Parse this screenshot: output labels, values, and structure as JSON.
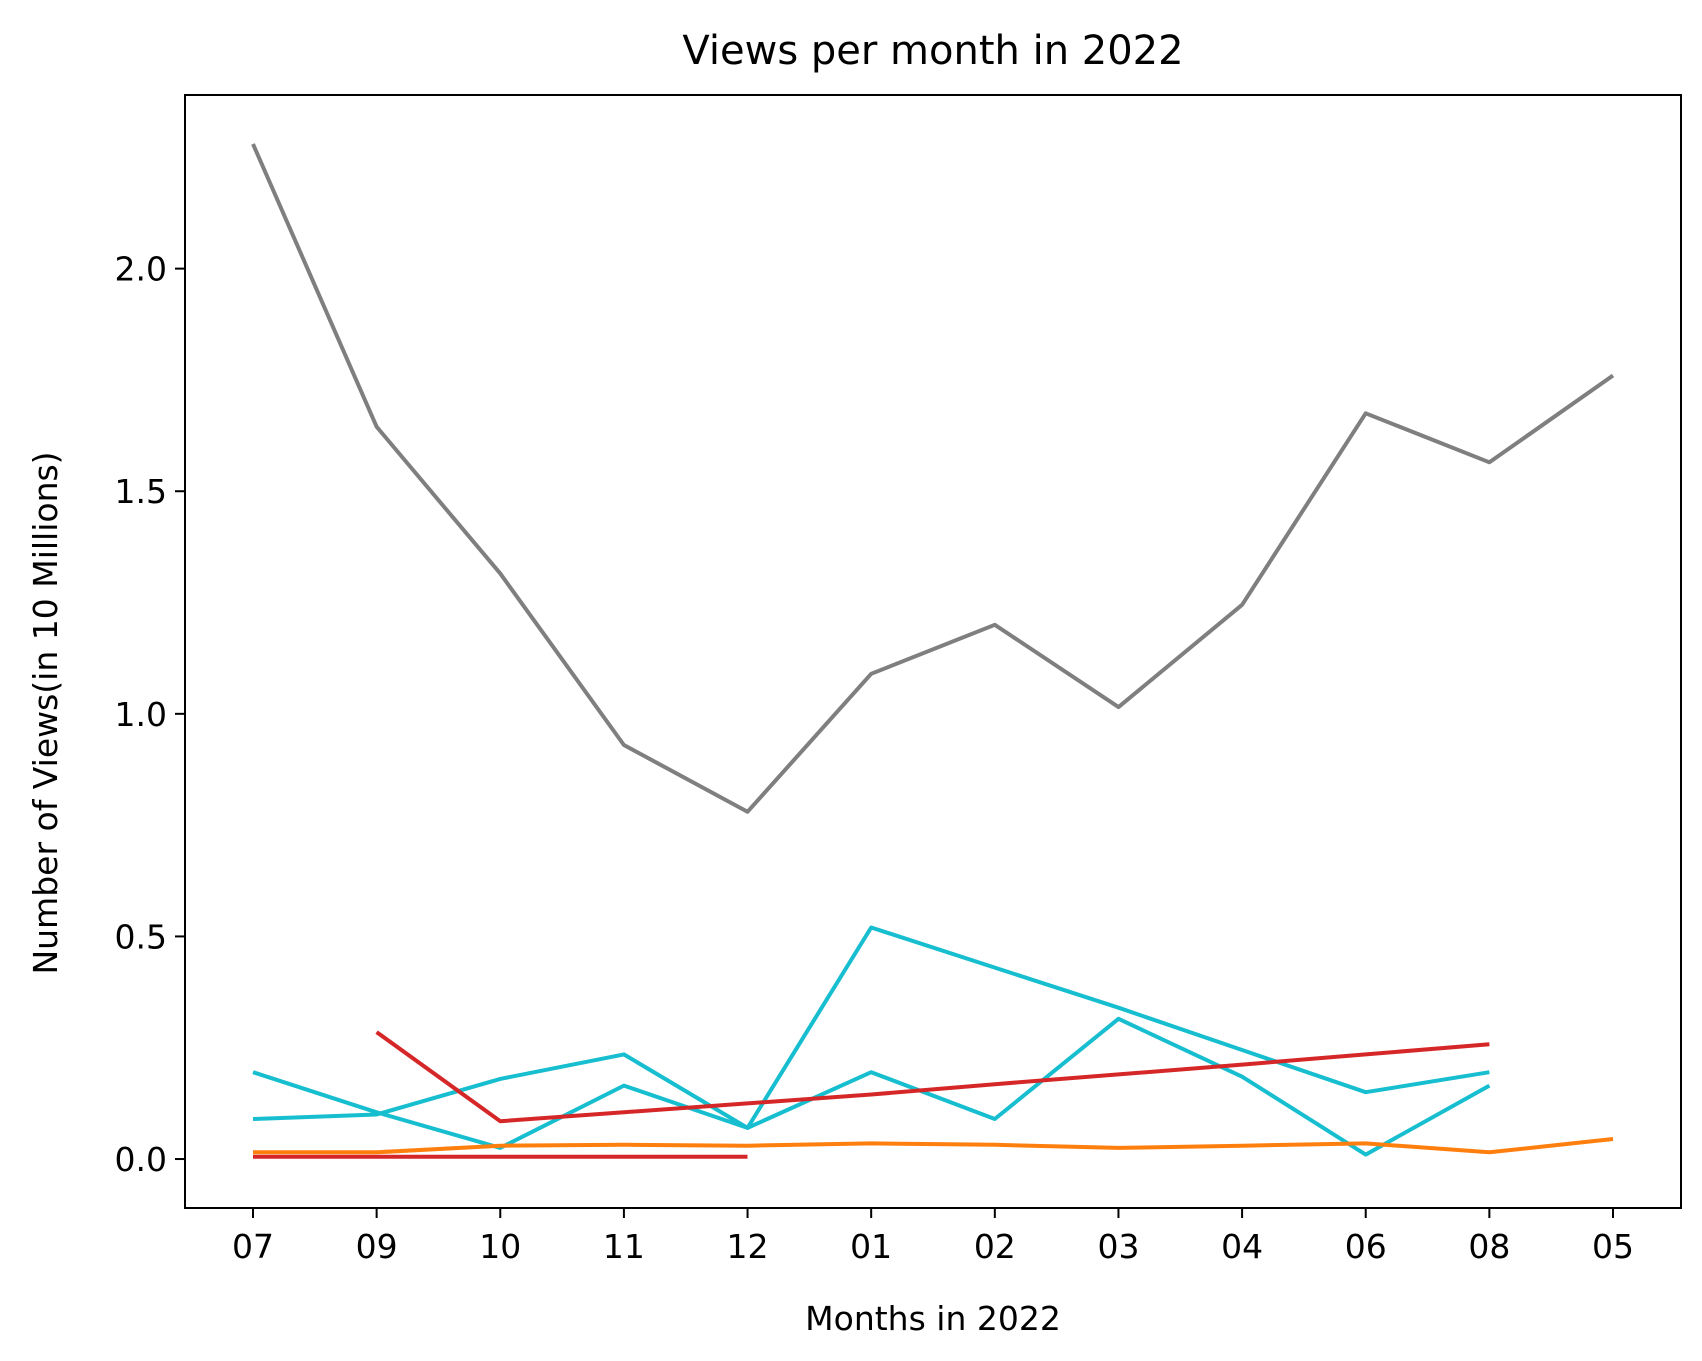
{
  "chart_data": {
    "type": "line",
    "title": "Views per month in 2022",
    "xlabel": "Months in 2022",
    "ylabel": "Number of Views(in 10 Millions)",
    "categories": [
      "07",
      "09",
      "10",
      "11",
      "12",
      "01",
      "02",
      "03",
      "04",
      "06",
      "08",
      "05"
    ],
    "ylim": [
      -0.11,
      2.39
    ],
    "yticks": [
      "0.0",
      "0.5",
      "1.0",
      "1.5",
      "2.0"
    ],
    "grid": false,
    "series": [
      {
        "color": "#7f7f7f",
        "values": [
          2.28,
          1.645,
          1.315,
          0.93,
          0.78,
          1.09,
          1.2,
          1.015,
          1.245,
          1.675,
          1.565,
          1.76
        ]
      },
      {
        "color": "#17becf",
        "values": [
          0.195,
          0.105,
          0.025,
          0.165,
          0.07,
          0.195,
          0.09,
          0.315,
          0.185,
          0.01,
          0.165,
          null
        ]
      },
      {
        "color": "#17becf",
        "values": [
          0.09,
          0.1,
          0.18,
          0.235,
          0.07,
          0.52,
          0.43,
          0.34,
          0.245,
          0.15,
          0.195,
          null
        ]
      },
      {
        "color": "#d62728",
        "values": [
          null,
          0.285,
          0.085,
          0.105,
          0.125,
          0.145,
          0.168,
          0.19,
          0.212,
          0.235,
          0.258,
          null
        ]
      },
      {
        "color": "#d62728",
        "values": [
          0.005,
          0.005,
          0.005,
          0.005,
          0.005,
          null,
          null,
          null,
          null,
          null,
          null,
          null
        ]
      },
      {
        "color": "#ff7f0e",
        "values": [
          0.015,
          0.015,
          0.03,
          0.032,
          0.03,
          0.035,
          0.032,
          0.025,
          0.03,
          0.035,
          0.015,
          0.045
        ]
      }
    ]
  }
}
